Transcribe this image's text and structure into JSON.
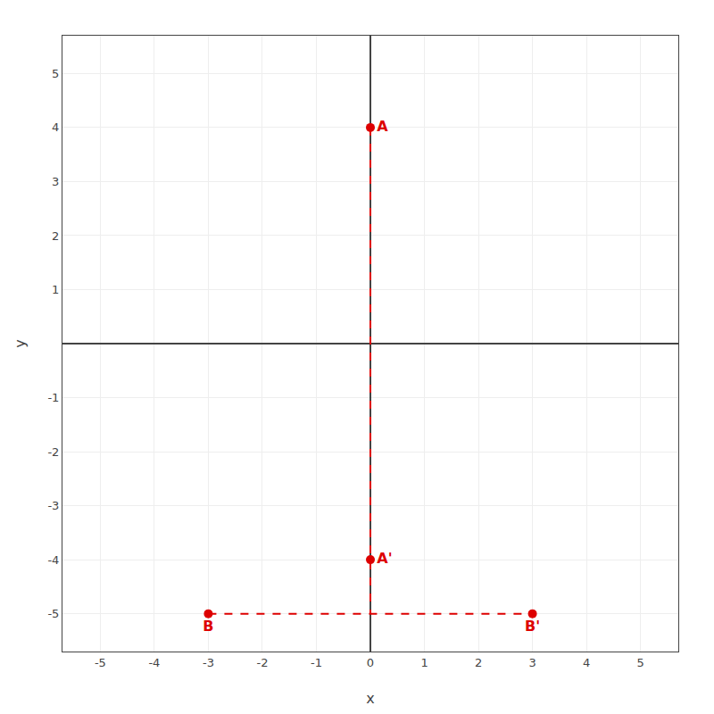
{
  "chart_data": {
    "type": "scatter",
    "x_label": "x",
    "y_label": "y",
    "xlim": [
      -5.7,
      5.7
    ],
    "ylim": [
      -5.7,
      5.7
    ],
    "xticks": [
      -5,
      -4,
      -3,
      -2,
      -1,
      0,
      1,
      2,
      3,
      4,
      5
    ],
    "yticks": [
      -5,
      -4,
      -3,
      -2,
      -1,
      1,
      2,
      3,
      4,
      5
    ],
    "grid": true,
    "series": [
      {
        "type": "line",
        "line_style": "dashed",
        "color": "#dd0000",
        "x": [
          0,
          0
        ],
        "y": [
          4,
          -5
        ]
      },
      {
        "type": "line",
        "line_style": "dashed",
        "color": "#dd0000",
        "x": [
          -3,
          3
        ],
        "y": [
          -5,
          -5
        ]
      },
      {
        "type": "scatter",
        "marker": "circle",
        "color": "#dd0000",
        "x": [
          0,
          0,
          -3,
          3
        ],
        "y": [
          4,
          -4,
          -5,
          -5
        ],
        "point_labels": [
          "A",
          "A'",
          "B",
          "B'"
        ]
      }
    ]
  }
}
